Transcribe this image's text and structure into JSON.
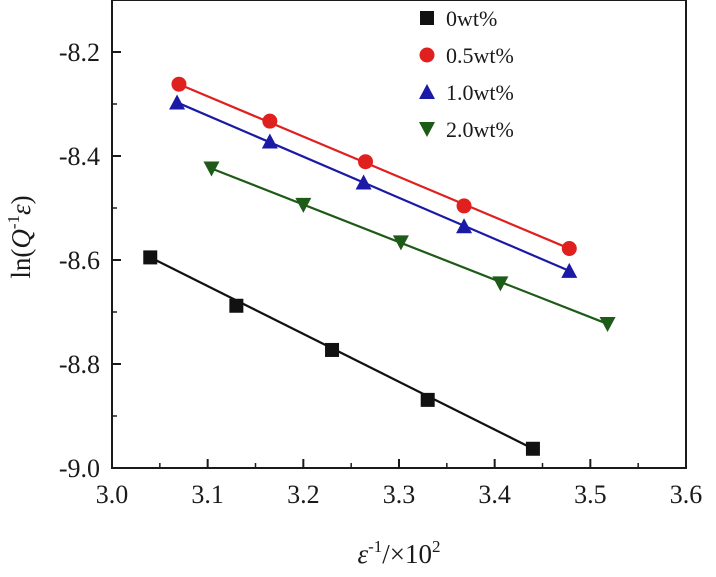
{
  "chart_data": {
    "type": "scatter",
    "xlabel_main": "ε",
    "xlabel_sup": "-1",
    "xlabel_tail": "/×10",
    "xlabel_tail_sup": "2",
    "ylabel_prefix": "ln(",
    "ylabel_q": "Q",
    "ylabel_sup": "-1",
    "ylabel_eps": "ε",
    "ylabel_suffix": ")",
    "xlim": [
      3.0,
      3.6
    ],
    "ylim": [
      -9.0,
      -8.1
    ],
    "xticks": [
      3.0,
      3.1,
      3.2,
      3.3,
      3.4,
      3.5,
      3.6
    ],
    "xtick_labels": [
      "3.0",
      "3.1",
      "3.2",
      "3.3",
      "3.4",
      "3.5",
      "3.6"
    ],
    "yticks": [
      -9.0,
      -8.8,
      -8.6,
      -8.4,
      -8.2
    ],
    "ytick_labels": [
      "-9.0",
      "-8.8",
      "-8.6",
      "-8.4",
      "-8.2"
    ],
    "grid": false,
    "legend_position": "top-right",
    "series": [
      {
        "name": "0wt%",
        "color": "#111111",
        "marker": "square",
        "x": [
          3.04,
          3.13,
          3.23,
          3.33,
          3.44
        ],
        "y": [
          -8.595,
          -8.688,
          -8.773,
          -8.869,
          -8.963
        ],
        "fit_x": [
          3.04,
          3.44
        ],
        "fit_y": [
          -8.595,
          -8.963
        ]
      },
      {
        "name": "0.5wt%",
        "color": "#e0201f",
        "marker": "circle",
        "x": [
          3.07,
          3.165,
          3.265,
          3.368,
          3.478
        ],
        "y": [
          -8.262,
          -8.333,
          -8.411,
          -8.496,
          -8.578
        ],
        "fit_x": [
          3.07,
          3.478
        ],
        "fit_y": [
          -8.262,
          -8.578
        ]
      },
      {
        "name": "1.0wt%",
        "color": "#1a1aa6",
        "marker": "triangle-up",
        "x": [
          3.068,
          3.165,
          3.263,
          3.368,
          3.478
        ],
        "y": [
          -8.297,
          -8.372,
          -8.451,
          -8.535,
          -8.621
        ],
        "fit_x": [
          3.068,
          3.478
        ],
        "fit_y": [
          -8.297,
          -8.621
        ]
      },
      {
        "name": "2.0wt%",
        "color": "#1e5a18",
        "marker": "triangle-down",
        "x": [
          3.104,
          3.2,
          3.302,
          3.406,
          3.518
        ],
        "y": [
          -8.424,
          -8.494,
          -8.566,
          -8.645,
          -8.723
        ],
        "fit_x": [
          3.104,
          3.518
        ],
        "fit_y": [
          -8.424,
          -8.723
        ]
      }
    ]
  }
}
